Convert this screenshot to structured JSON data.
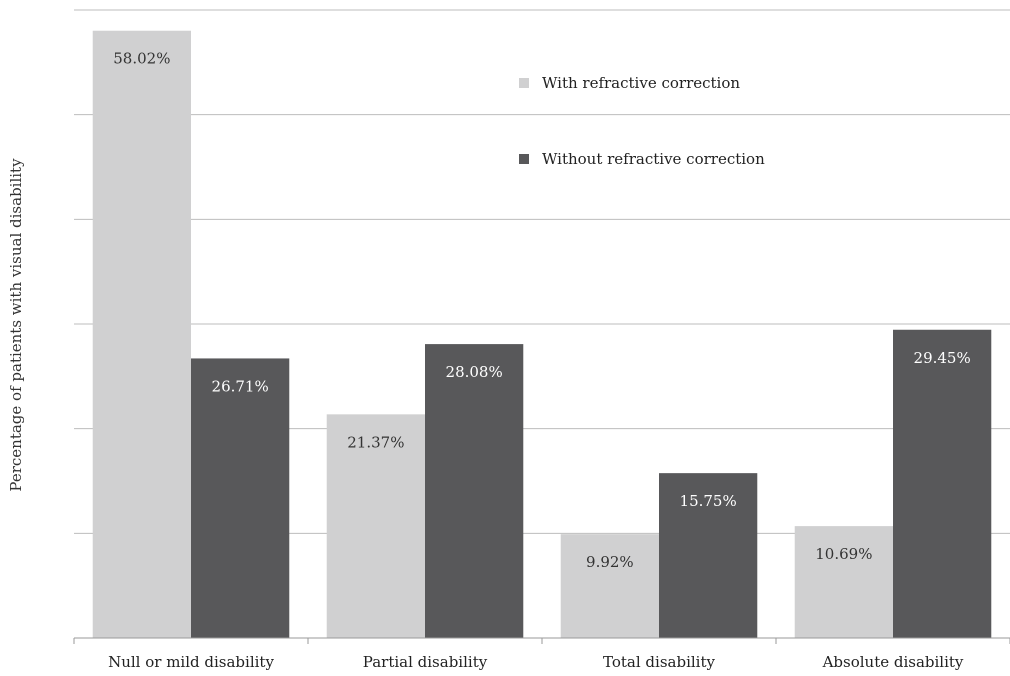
{
  "chart_data": {
    "type": "bar",
    "title": "",
    "xlabel": "",
    "ylabel": "Percentage of patients with visual disability",
    "ylim": [
      0,
      60
    ],
    "grid": true,
    "legend_position": "top-center",
    "categories": [
      "Null or mild disability",
      "Partial disability",
      "Total disability",
      "Absolute disability"
    ],
    "series": [
      {
        "name": "With refractive correction",
        "color": "#d0d0d1",
        "label_color": "#333333",
        "values": [
          58.02,
          21.37,
          9.92,
          10.69
        ],
        "labels": [
          "58.02%",
          "21.37%",
          "9.92%",
          "10.69%"
        ]
      },
      {
        "name": "Without refractive correction",
        "color": "#58585a",
        "label_color": "#ffffff",
        "values": [
          26.71,
          28.08,
          15.75,
          29.45
        ],
        "labels": [
          "26.71%",
          "28.08%",
          "15.75%",
          "29.45%"
        ]
      }
    ]
  }
}
